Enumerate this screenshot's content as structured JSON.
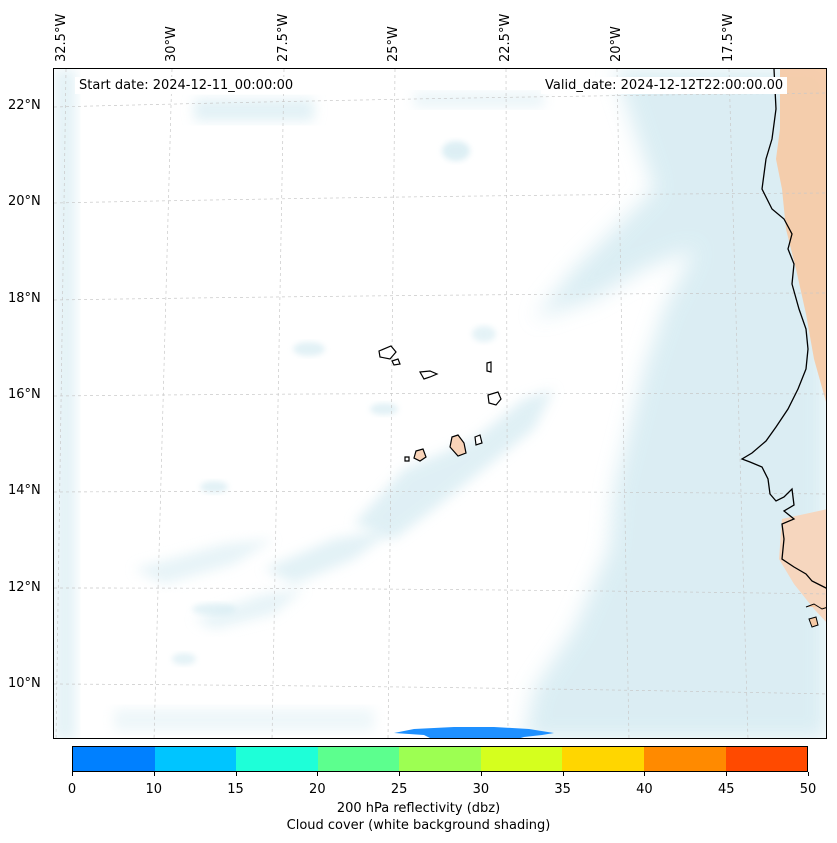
{
  "header": {
    "start_date": "Start date: 2024-12-11_00:00:00",
    "valid_date": "Valid_date: 2024-12-12T22:00:00.00"
  },
  "map": {
    "longitude_labels": [
      "32.5°W",
      "30°W",
      "27.5°W",
      "25°W",
      "22.5°W",
      "20°W",
      "17.5°W"
    ],
    "latitude_labels": [
      "22°N",
      "20°N",
      "18°N",
      "16°N",
      "14°N",
      "12°N",
      "10°N"
    ],
    "gridlines": true,
    "colors": {
      "cloud": "#cfe8f0",
      "land": "#f6c9a4",
      "coastline": "#000000",
      "gridline": "#c8c8c8",
      "reflectivity": "#1e90ff"
    }
  },
  "colorbar": {
    "ticks": [
      "0",
      "10",
      "15",
      "20",
      "25",
      "30",
      "35",
      "40",
      "45",
      "50"
    ],
    "colors": [
      "#0080ff",
      "#00c5ff",
      "#1effd8",
      "#5cff8e",
      "#9dff52",
      "#d5ff1e",
      "#ffd600",
      "#ff8a00",
      "#ff4a00"
    ],
    "label": "200 hPa reflectivity (dbz)",
    "sublabel": "Cloud cover (white background shading)"
  }
}
